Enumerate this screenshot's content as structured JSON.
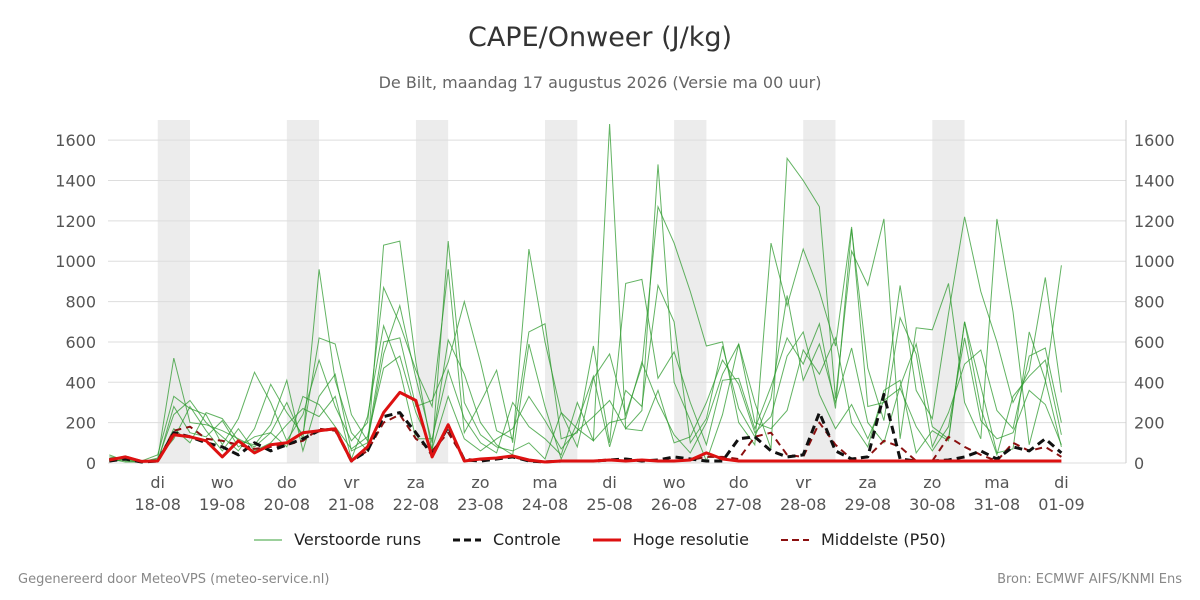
{
  "header": {
    "title": "CAPE/Onweer (J/kg)",
    "subtitle": "De Bilt, maandag 17 augustus 2026 (Versie ma 00 uur)"
  },
  "footer": {
    "left": "Gegenereerd door MeteoVPS (meteo-service.nl)",
    "right": "Bron: ECMWF AIFS/KNMI Ens"
  },
  "legend": [
    {
      "label": "Verstoorde runs",
      "color": "#3aa03a",
      "style": "thin-solid"
    },
    {
      "label": "Controle",
      "color": "#111111",
      "style": "dashed"
    },
    {
      "label": "Hoge resolutie",
      "color": "#dd1111",
      "style": "thick-solid"
    },
    {
      "label": "Middelste (P50)",
      "color": "#8b1010",
      "style": "dashed"
    }
  ],
  "colors": {
    "ensemble": "#2e9a2e",
    "control": "#111111",
    "hires": "#dd1111",
    "median": "#8b1010",
    "night_band": "#ececec",
    "grid": "#dddddd"
  },
  "chart_data": {
    "type": "line",
    "title": "CAPE/Onweer (J/kg)",
    "subtitle": "De Bilt, maandag 17 augustus 2026 (Versie ma 00 uur)",
    "xlabel": "",
    "ylabel": "",
    "ylim": [
      0,
      1700
    ],
    "xlim": [
      -0.77,
      15.0
    ],
    "x_unit": "days after 17-08-2026 00 UTC",
    "yticks": [
      0,
      200,
      400,
      600,
      800,
      1000,
      1200,
      1400,
      1600
    ],
    "xticks": [
      {
        "x": 0,
        "day": "di",
        "date": "18-08"
      },
      {
        "x": 1,
        "day": "wo",
        "date": "19-08"
      },
      {
        "x": 2,
        "day": "do",
        "date": "20-08"
      },
      {
        "x": 3,
        "day": "vr",
        "date": "21-08"
      },
      {
        "x": 4,
        "day": "za",
        "date": "22-08"
      },
      {
        "x": 5,
        "day": "zo",
        "date": "23-08"
      },
      {
        "x": 6,
        "day": "ma",
        "date": "24-08"
      },
      {
        "x": 7,
        "day": "di",
        "date": "25-08"
      },
      {
        "x": 8,
        "day": "wo",
        "date": "26-08"
      },
      {
        "x": 9,
        "day": "do",
        "date": "27-08"
      },
      {
        "x": 10,
        "day": "vr",
        "date": "28-08"
      },
      {
        "x": 11,
        "day": "za",
        "date": "29-08"
      },
      {
        "x": 12,
        "day": "zo",
        "date": "30-08"
      },
      {
        "x": 13,
        "day": "ma",
        "date": "31-08"
      },
      {
        "x": 14,
        "day": "di",
        "date": "01-09"
      }
    ],
    "shaded_bands": [
      [
        0,
        0.5
      ],
      [
        2,
        2.5
      ],
      [
        4,
        4.5
      ],
      [
        6,
        6.5
      ],
      [
        8,
        8.5
      ],
      [
        10,
        10.5
      ],
      [
        12,
        12.5
      ]
    ],
    "grid": true,
    "legend_position": "bottom",
    "x": [
      -0.75,
      -0.5,
      -0.25,
      0,
      0.25,
      0.5,
      0.75,
      1,
      1.25,
      1.5,
      1.75,
      2,
      2.25,
      2.5,
      2.75,
      3,
      3.25,
      3.5,
      3.75,
      4,
      4.25,
      4.5,
      4.75,
      5,
      5.25,
      5.5,
      5.75,
      6,
      6.25,
      6.5,
      6.75,
      7,
      7.25,
      7.5,
      7.75,
      8,
      8.25,
      8.5,
      8.75,
      9,
      9.25,
      9.5,
      9.75,
      10,
      10.25,
      10.5,
      10.75,
      11,
      11.25,
      11.5,
      11.75,
      12,
      12.25,
      12.5,
      12.75,
      13,
      13.25,
      13.5,
      13.75,
      14
    ],
    "series": [
      {
        "name": "Controle",
        "values": [
          10,
          20,
          5,
          10,
          150,
          130,
          100,
          80,
          40,
          100,
          60,
          90,
          120,
          160,
          170,
          10,
          60,
          230,
          250,
          150,
          40,
          180,
          15,
          10,
          20,
          30,
          10,
          5,
          10,
          10,
          10,
          15,
          20,
          10,
          15,
          30,
          20,
          10,
          10,
          120,
          130,
          60,
          30,
          40,
          250,
          60,
          20,
          30,
          340,
          20,
          10,
          10,
          15,
          30,
          60,
          20,
          80,
          60,
          120,
          50
        ]
      },
      {
        "name": "Hoge resolutie",
        "values": [
          15,
          30,
          8,
          10,
          140,
          130,
          110,
          30,
          110,
          50,
          90,
          100,
          150,
          160,
          170,
          10,
          80,
          250,
          350,
          310,
          30,
          190,
          10,
          20,
          25,
          35,
          15,
          5,
          10,
          10,
          10,
          15,
          10,
          15,
          10,
          10,
          15,
          50,
          20,
          10,
          10,
          10,
          10,
          10,
          10,
          10,
          10,
          10,
          10,
          10,
          10,
          10,
          10,
          10,
          10,
          10,
          10,
          10,
          10,
          10
        ]
      },
      {
        "name": "Middelste (P50)",
        "values": [
          20,
          30,
          10,
          10,
          160,
          180,
          120,
          110,
          90,
          70,
          80,
          90,
          110,
          170,
          160,
          10,
          60,
          200,
          240,
          120,
          60,
          150,
          20,
          15,
          25,
          30,
          10,
          5,
          10,
          10,
          10,
          15,
          10,
          15,
          10,
          10,
          15,
          30,
          30,
          20,
          130,
          150,
          40,
          30,
          200,
          90,
          20,
          30,
          110,
          80,
          10,
          10,
          130,
          80,
          40,
          10,
          100,
          60,
          80,
          30
        ]
      },
      {
        "name": "",
        "values": [
          30,
          20,
          5,
          20,
          520,
          200,
          190,
          160,
          120,
          80,
          150,
          300,
          120,
          960,
          410,
          150,
          60,
          1080,
          1100,
          500,
          60,
          1100,
          300,
          140,
          80,
          60,
          100,
          20,
          250,
          170,
          110,
          1680,
          170,
          260,
          1480,
          400,
          210,
          10,
          240,
          590,
          300,
          70,
          1510,
          1400,
          1270,
          320,
          1050,
          880,
          1210,
          120,
          670,
          660,
          890,
          300,
          120,
          1210,
          750,
          90,
          400,
          980
        ]
      },
      {
        "name": "",
        "values": [
          15,
          35,
          10,
          40,
          330,
          270,
          240,
          90,
          220,
          450,
          300,
          110,
          240,
          510,
          280,
          110,
          200,
          870,
          690,
          460,
          280,
          960,
          150,
          300,
          460,
          100,
          1060,
          600,
          250,
          80,
          420,
          540,
          240,
          480,
          1270,
          1090,
          850,
          580,
          600,
          200,
          90,
          1090,
          780,
          1060,
          850,
          580,
          1170,
          280,
          300,
          880,
          360,
          220,
          740,
          1220,
          850,
          600,
          300,
          460,
          920,
          350
        ]
      },
      {
        "name": "",
        "values": [
          40,
          10,
          5,
          15,
          240,
          310,
          200,
          130,
          60,
          170,
          390,
          250,
          140,
          620,
          590,
          240,
          110,
          600,
          620,
          280,
          310,
          500,
          800,
          500,
          160,
          120,
          650,
          690,
          120,
          150,
          580,
          100,
          890,
          910,
          420,
          550,
          300,
          90,
          410,
          420,
          170,
          380,
          620,
          490,
          690,
          270,
          1160,
          470,
          210,
          720,
          540,
          80,
          250,
          490,
          560,
          260,
          170,
          530,
          570,
          200
        ]
      },
      {
        "name": "",
        "values": [
          20,
          5,
          5,
          10,
          170,
          100,
          250,
          220,
          110,
          90,
          190,
          410,
          60,
          330,
          440,
          60,
          100,
          540,
          780,
          420,
          100,
          610,
          440,
          200,
          90,
          40,
          590,
          280,
          20,
          200,
          430,
          80,
          360,
          280,
          880,
          700,
          100,
          220,
          580,
          270,
          130,
          320,
          830,
          410,
          590,
          300,
          570,
          200,
          100,
          380,
          590,
          180,
          120,
          700,
          270,
          40,
          330,
          430,
          510,
          140
        ]
      },
      {
        "name": "",
        "values": [
          10,
          15,
          5,
          25,
          120,
          280,
          160,
          60,
          170,
          60,
          100,
          190,
          270,
          230,
          330,
          20,
          230,
          680,
          460,
          120,
          120,
          460,
          220,
          100,
          50,
          300,
          180,
          120,
          40,
          300,
          110,
          200,
          220,
          500,
          300,
          140,
          50,
          200,
          440,
          590,
          200,
          170,
          260,
          560,
          440,
          620,
          200,
          80,
          360,
          410,
          50,
          160,
          110,
          700,
          380,
          50,
          70,
          650,
          410,
          80
        ]
      },
      {
        "name": "",
        "values": [
          5,
          20,
          10,
          5,
          280,
          150,
          130,
          210,
          80,
          130,
          150,
          80,
          330,
          290,
          180,
          70,
          130,
          470,
          530,
          250,
          70,
          330,
          120,
          60,
          120,
          170,
          330,
          210,
          70,
          160,
          230,
          310,
          170,
          160,
          360,
          100,
          130,
          300,
          510,
          390,
          150,
          230,
          530,
          650,
          340,
          170,
          290,
          120,
          310,
          370,
          180,
          60,
          180,
          620,
          210,
          120,
          150,
          360,
          290,
          90
        ]
      }
    ]
  }
}
